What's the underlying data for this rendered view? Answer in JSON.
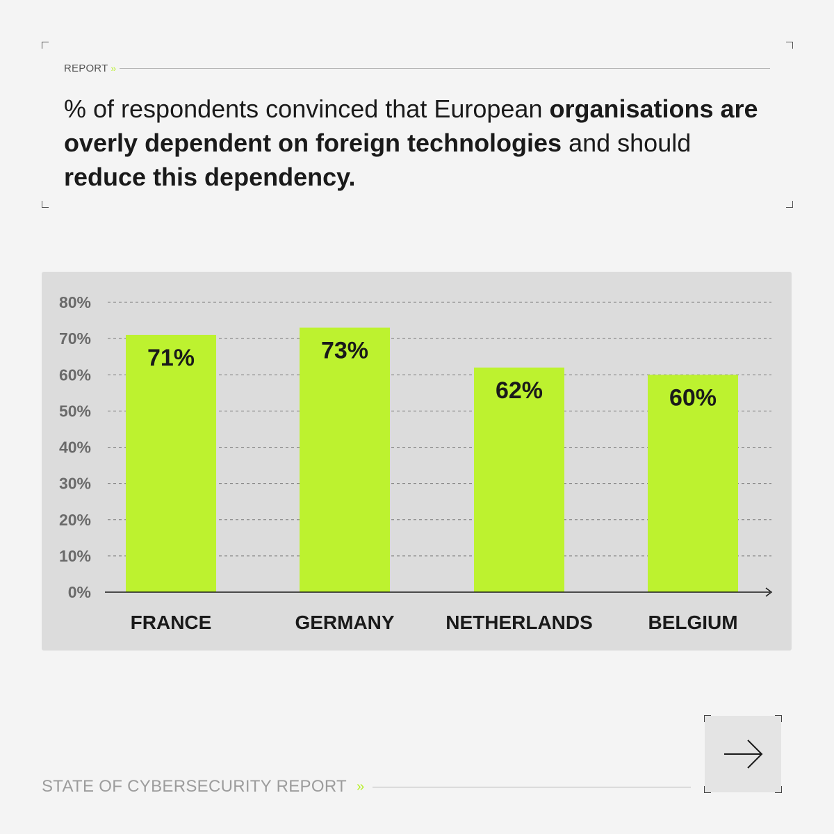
{
  "header": {
    "section_label": "REPORT",
    "section_chevron": "››"
  },
  "headline": {
    "part1": "% of respondents convinced that European ",
    "bold1": "organisations are overly dependent on foreign technologies",
    "part2": " and should ",
    "bold2": "reduce this dependency."
  },
  "chart_data": {
    "type": "bar",
    "categories": [
      "FRANCE",
      "GERMANY",
      "NETHERLANDS",
      "BELGIUM"
    ],
    "values": [
      71,
      73,
      62,
      60
    ],
    "value_labels": [
      "71%",
      "73%",
      "62%",
      "60%"
    ],
    "yticks": [
      "0%",
      "10%",
      "20%",
      "30%",
      "40%",
      "50%",
      "60%",
      "70%",
      "80%"
    ],
    "ylim": [
      0,
      80
    ],
    "grid": true,
    "bar_color": "#bdf22f"
  },
  "footer": {
    "label": "STATE OF CYBERSECURITY REPORT",
    "chevron": "››"
  },
  "navigation": {
    "next_icon": "arrow-right-icon"
  },
  "colors": {
    "accent": "#bdf22f",
    "background": "#f4f4f4",
    "panel": "#dcdcdc"
  }
}
